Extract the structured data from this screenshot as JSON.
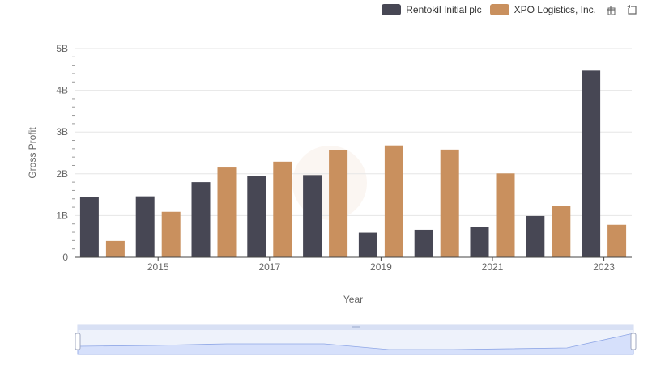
{
  "chart_data": {
    "type": "bar",
    "title": "",
    "xlabel": "Year",
    "ylabel": "Gross Profit",
    "x": [
      2014,
      2015,
      2016,
      2017,
      2018,
      2019,
      2020,
      2021,
      2022,
      2023
    ],
    "xticks": [
      "2015",
      "2017",
      "2019",
      "2021",
      "2023"
    ],
    "yticks": [
      "0",
      "1B",
      "2B",
      "3B",
      "4B",
      "5B"
    ],
    "ylim": [
      0,
      5000000000
    ],
    "grid": true,
    "legend_position": "top-right",
    "series": [
      {
        "name": "Rentokil Initial plc",
        "color": "#474754",
        "values": [
          1450000000,
          1460000000,
          1800000000,
          1950000000,
          1970000000,
          590000000,
          660000000,
          730000000,
          990000000,
          4470000000
        ]
      },
      {
        "name": "XPO Logistics, Inc.",
        "color": "#c9905e",
        "values": [
          390000000,
          1090000000,
          2150000000,
          2290000000,
          2560000000,
          2680000000,
          2580000000,
          2010000000,
          1240000000,
          780000000
        ]
      }
    ]
  },
  "toolbox": {
    "zoom_icon": "zoom-icon",
    "reset_icon": "restore-icon"
  }
}
